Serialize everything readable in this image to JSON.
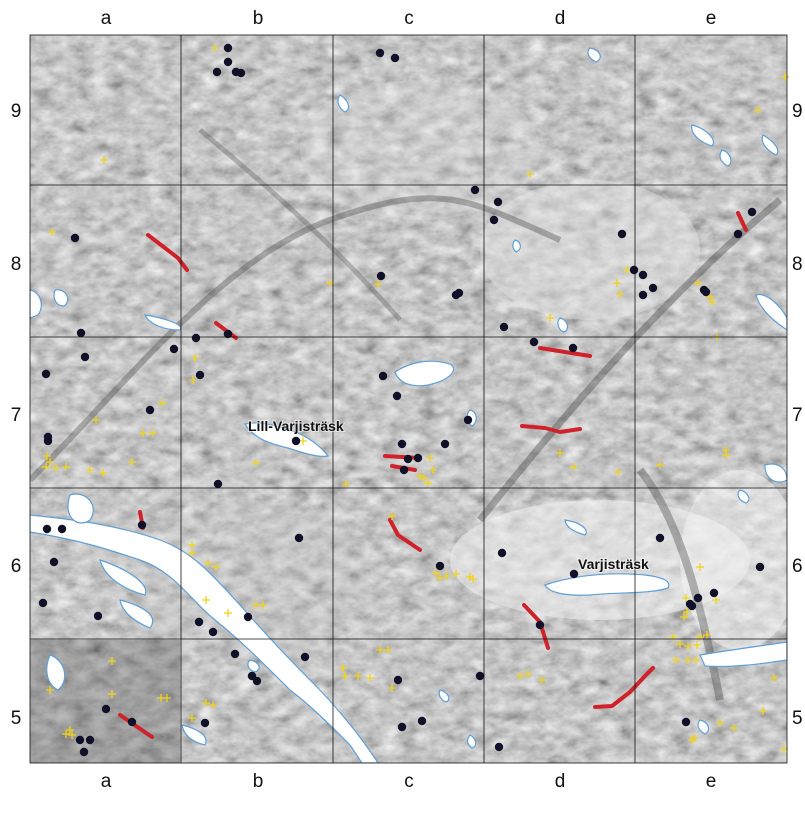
{
  "map": {
    "columns": [
      "a",
      "b",
      "c",
      "d",
      "e"
    ],
    "rows": [
      "9",
      "8",
      "7",
      "6",
      "5"
    ],
    "places": [
      {
        "id": "lill-varjistrask",
        "name": "Lill-Varjisträsk"
      },
      {
        "id": "varjistrask",
        "name": "Varjisträsk"
      }
    ],
    "colors": {
      "water": "#ffffff",
      "water_outline": "#5f9fd6",
      "red_lines": "#d0222a",
      "yellow_crosses": "#f2d21a",
      "dots": "#101028",
      "grid": "#111111"
    },
    "symbols": [
      "black-dot",
      "yellow-cross",
      "red-line"
    ]
  }
}
